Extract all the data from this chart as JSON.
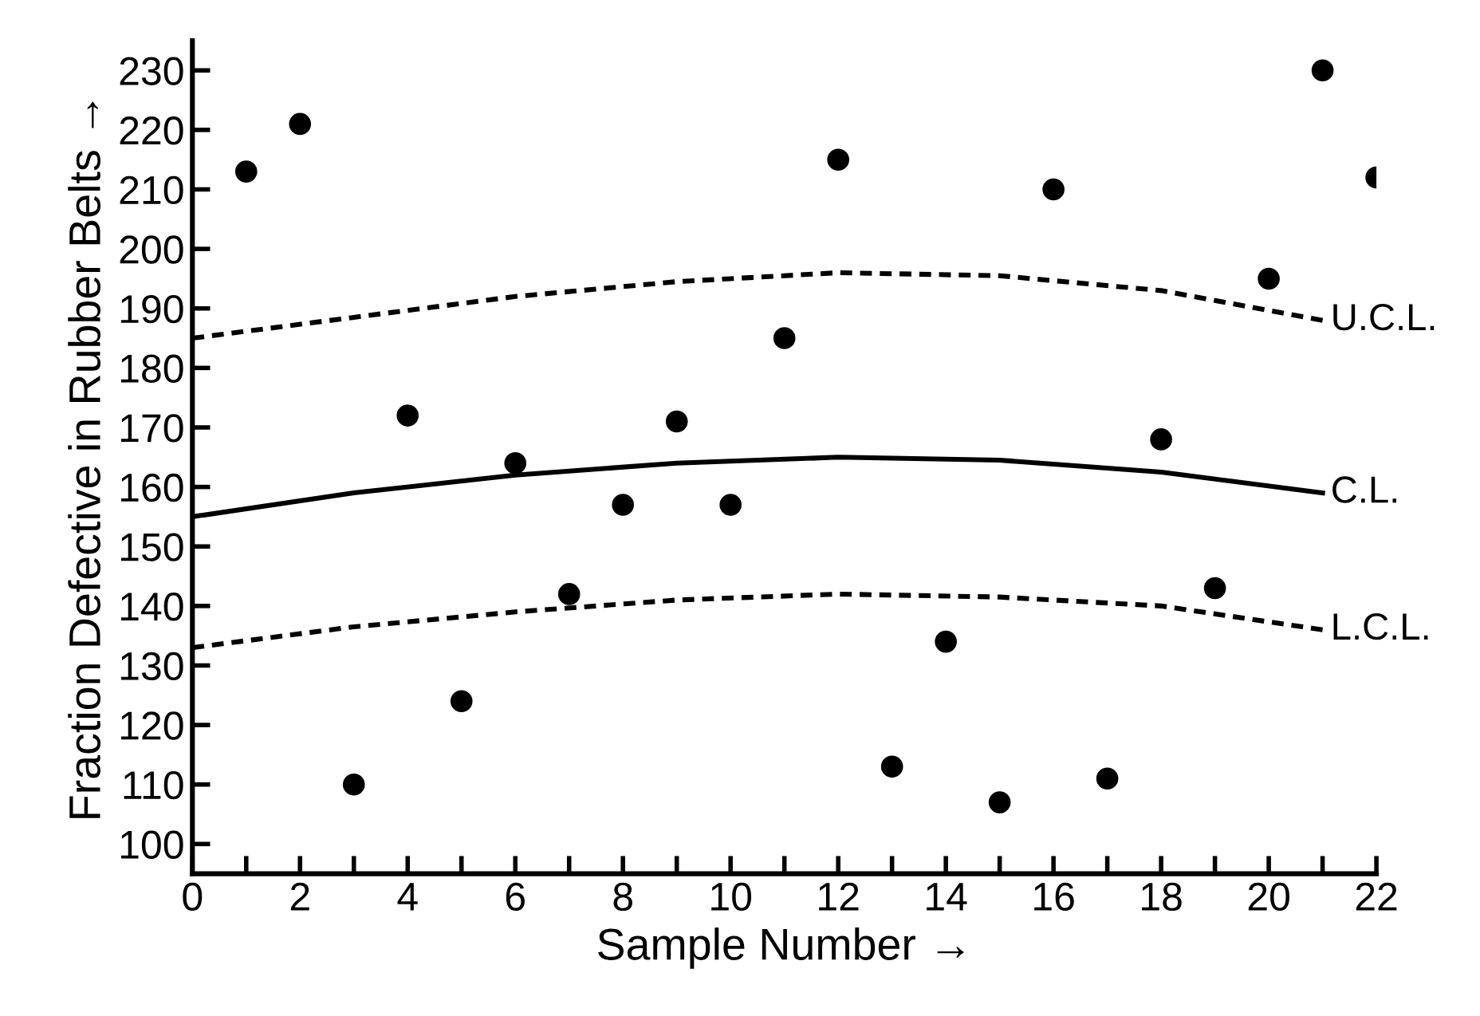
{
  "chart_data": {
    "type": "scatter",
    "xlabel": "Sample Number →",
    "ylabel": "Fraction Defective in Rubber Belts →",
    "xlim": [
      0,
      22
    ],
    "ylim": [
      95,
      235
    ],
    "xticks": [
      0,
      {
        "value": 1,
        "label": null
      },
      2,
      {
        "value": 3,
        "label": null
      },
      4,
      {
        "value": 5,
        "label": null
      },
      6,
      {
        "value": 7,
        "label": null
      },
      8,
      {
        "value": 9,
        "label": null
      },
      10,
      {
        "value": 11,
        "label": null
      },
      12,
      {
        "value": 13,
        "label": null
      },
      14,
      {
        "value": 15,
        "label": null
      },
      16,
      {
        "value": 17,
        "label": null
      },
      18,
      {
        "value": 19,
        "label": null
      },
      20,
      {
        "value": 21,
        "label": null
      },
      22
    ],
    "yticks": [
      100,
      110,
      120,
      130,
      140,
      150,
      160,
      170,
      180,
      190,
      200,
      210,
      220,
      230
    ],
    "grid": false,
    "legend": false,
    "series": [
      {
        "color": "#000000",
        "marker": "circle",
        "x": [
          1,
          2,
          3,
          4,
          5,
          6,
          7,
          8,
          9,
          10,
          11,
          12,
          13,
          14,
          15,
          16,
          17,
          18,
          19,
          20,
          21,
          22
        ],
        "values": [
          213,
          221,
          110,
          172,
          124,
          164,
          142,
          157,
          171,
          157,
          185,
          215,
          113,
          134,
          107,
          210,
          111,
          168,
          143,
          195,
          230,
          212
        ]
      },
      {
        "type": "line",
        "name": "U.C.L.",
        "color": "#000000",
        "line_style": "dashed",
        "marker": "none",
        "x": [
          0,
          3,
          6,
          9,
          12,
          15,
          18,
          21
        ],
        "values": [
          185,
          188.5,
          192,
          194.5,
          196,
          195.5,
          193,
          188
        ]
      },
      {
        "type": "line",
        "name": "C.L.",
        "color": "#000000",
        "line_style": "solid",
        "marker": "none",
        "x": [
          0,
          3,
          6,
          9,
          12,
          15,
          18,
          21
        ],
        "values": [
          155,
          159,
          162,
          164,
          165,
          164.5,
          162.5,
          159
        ]
      },
      {
        "type": "line",
        "name": "L.C.L.",
        "color": "#000000",
        "line_style": "dashed",
        "marker": "none",
        "x": [
          0,
          3,
          6,
          9,
          12,
          15,
          18,
          21
        ],
        "values": [
          133,
          136.5,
          139,
          141,
          142,
          141.5,
          140,
          136
        ]
      }
    ]
  }
}
